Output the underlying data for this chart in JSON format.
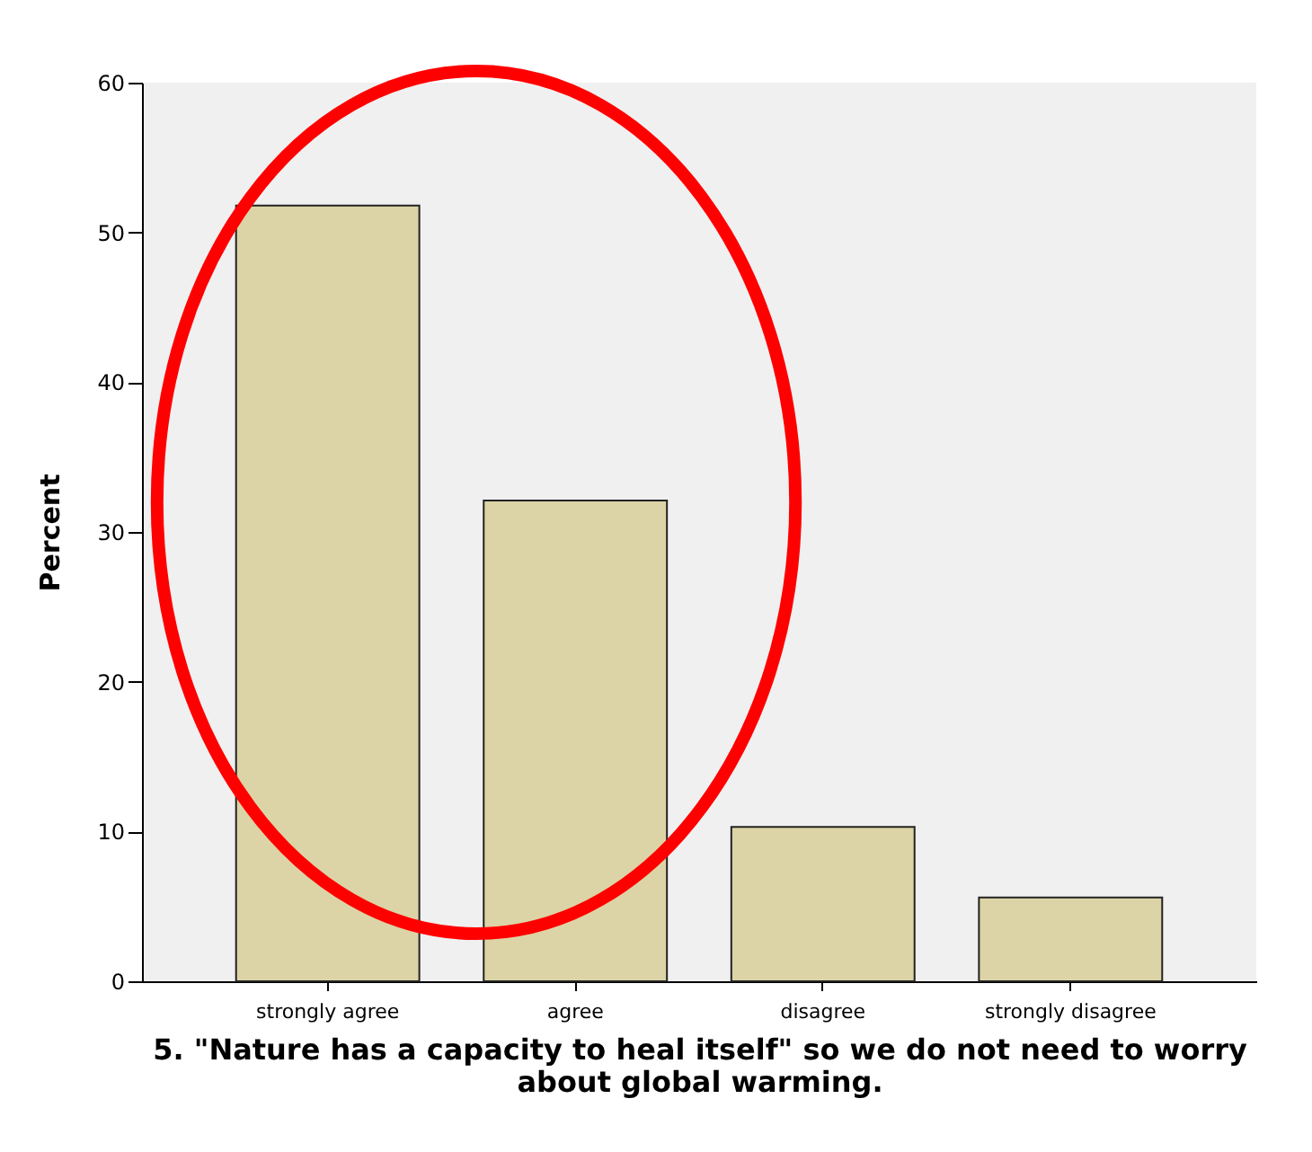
{
  "chart_data": {
    "type": "bar",
    "ylabel": "Percent",
    "xlabel": "5. \"Nature has a capacity to heal itself\" so we do not need to worry\nabout global warming.",
    "categories": [
      "strongly agree",
      "agree",
      "disagree",
      "strongly disagree"
    ],
    "values": [
      51.8,
      32.1,
      10.3,
      5.6
    ],
    "color": "#dcd4a6",
    "ylim": [
      0,
      60
    ],
    "yticks": [
      0,
      10,
      20,
      30,
      40,
      50,
      60
    ],
    "grid": false
  }
}
